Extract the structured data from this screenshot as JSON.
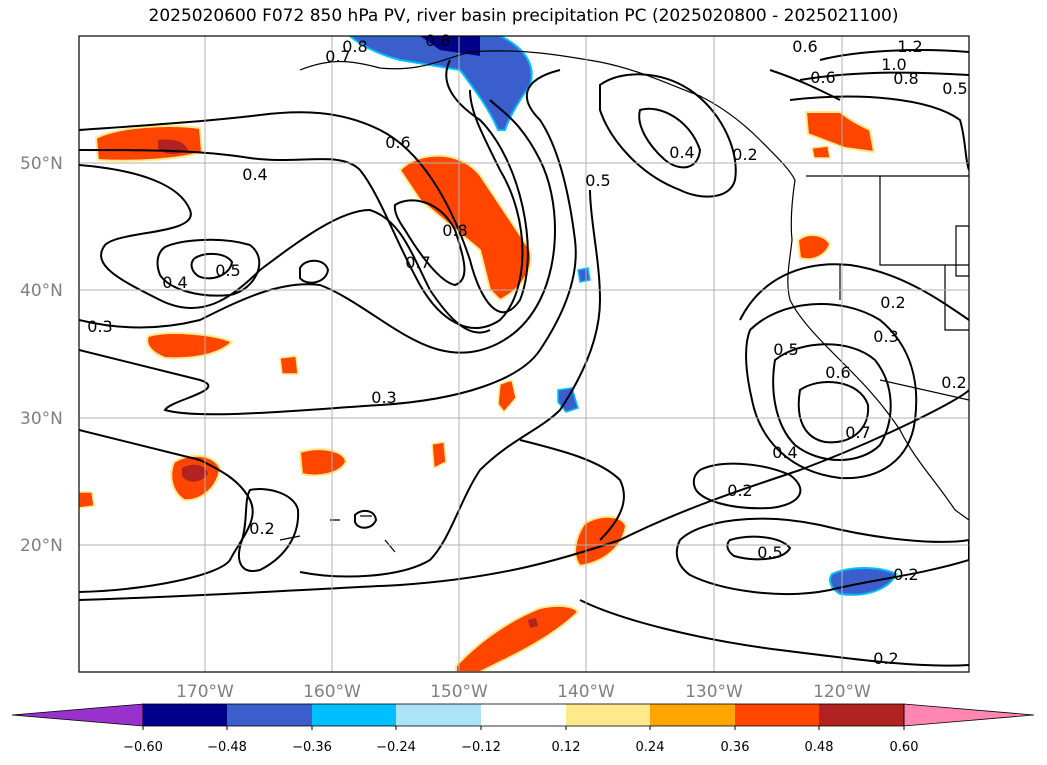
{
  "title": "2025020600 F072 850 hPa PV, river basin precipitation PC (2025020800 - 2025021100)",
  "map": {
    "lat_labels": [
      "50°N",
      "40°N",
      "30°N",
      "20°N"
    ],
    "lon_labels": [
      "170°W",
      "160°W",
      "150°W",
      "140°W",
      "130°W",
      "120°W"
    ],
    "gridlines": true,
    "contour_labels": [
      "0.8",
      "0.7",
      "0.8",
      "0.6",
      "0.4",
      "0.8",
      "0.7",
      "0.5",
      "0.4",
      "0.3",
      "0.3",
      "0.6",
      "0.5",
      "0.4",
      "0.2",
      "0.5",
      "0.6",
      "0.7",
      "0.4",
      "0.2",
      "0.5",
      "0.2",
      "0.2",
      "0.2",
      "0.3",
      "0.2",
      "1.2",
      "1.0",
      "0.8",
      "0.6",
      "0.2",
      "0.5"
    ]
  },
  "colorbar": {
    "tick_labels": [
      "−0.60",
      "−0.48",
      "−0.36",
      "−0.24",
      "−0.12",
      "0.12",
      "0.24",
      "0.36",
      "0.48",
      "0.60"
    ],
    "colors": [
      "#9932CC",
      "#00008B",
      "#3A5FCD",
      "#00BFFF",
      "#ADE3F8",
      "#FFFFFF",
      "#FFE98C",
      "#FFA500",
      "#FF4500",
      "#B22222",
      "#FF86B0"
    ]
  }
}
